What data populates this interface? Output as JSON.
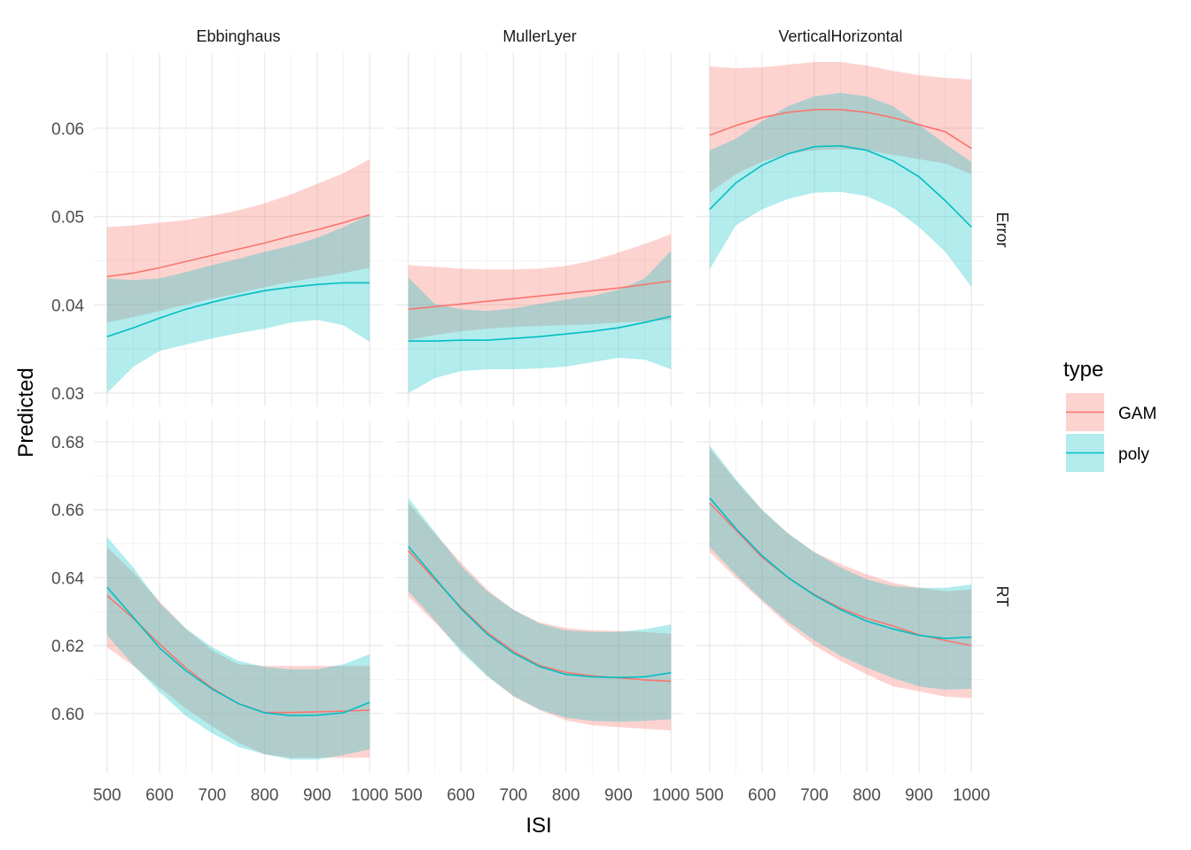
{
  "chart_data": {
    "type": "line",
    "xlabel": "ISI",
    "ylabel": "Predicted",
    "x": [
      500,
      550,
      600,
      650,
      700,
      750,
      800,
      850,
      900,
      950,
      1000
    ],
    "x_ticks": [
      500,
      600,
      700,
      800,
      900,
      1000
    ],
    "columns": [
      "Ebbinghaus",
      "MullerLyer",
      "VerticalHorizontal"
    ],
    "rows": [
      {
        "name": "Error",
        "ylim": [
          0.0285,
          0.0685
        ],
        "y_ticks": [
          0.03,
          0.04,
          0.05,
          0.06
        ],
        "tick_labels": [
          "0.03",
          "0.04",
          "0.05",
          "0.06"
        ]
      },
      {
        "name": "RT",
        "ylim": [
          0.5825,
          0.6865
        ],
        "y_ticks": [
          0.6,
          0.62,
          0.64,
          0.66,
          0.68
        ],
        "tick_labels": [
          "0.60",
          "0.62",
          "0.64",
          "0.66",
          "0.68"
        ]
      }
    ],
    "legend": {
      "title": "type",
      "position": "right",
      "entries": [
        "GAM",
        "poly"
      ]
    },
    "colors": {
      "GAM": "#f8766d",
      "poly": "#00bfc4",
      "GAM_band": "rgba(248,118,109,0.32)",
      "poly_band": "rgba(0,191,196,0.30)",
      "grid_major": "#ebebeb",
      "grid_minor": "#f3f3f3"
    },
    "panels": [
      {
        "row": "Error",
        "column": "Ebbinghaus",
        "series": [
          {
            "name": "GAM",
            "y": [
              0.0432,
              0.0436,
              0.0442,
              0.0449,
              0.0456,
              0.0463,
              0.047,
              0.0478,
              0.0485,
              0.0493,
              0.0502
            ],
            "lower": [
              0.038,
              0.0386,
              0.0393,
              0.04,
              0.0407,
              0.0413,
              0.042,
              0.0426,
              0.0431,
              0.0436,
              0.0442
            ],
            "upper": [
              0.0488,
              0.049,
              0.0493,
              0.0496,
              0.0501,
              0.0507,
              0.0515,
              0.0525,
              0.0537,
              0.0549,
              0.0565
            ]
          },
          {
            "name": "poly",
            "y": [
              0.0364,
              0.0374,
              0.0385,
              0.0395,
              0.0403,
              0.041,
              0.0416,
              0.042,
              0.0423,
              0.0425,
              0.0425
            ],
            "lower": [
              0.03,
              0.033,
              0.0348,
              0.0355,
              0.0362,
              0.0368,
              0.0373,
              0.038,
              0.0383,
              0.0377,
              0.0358
            ],
            "upper": [
              0.043,
              0.0428,
              0.043,
              0.0437,
              0.0445,
              0.0452,
              0.046,
              0.0467,
              0.0476,
              0.0488,
              0.0502
            ]
          }
        ]
      },
      {
        "row": "Error",
        "column": "MullerLyer",
        "series": [
          {
            "name": "GAM",
            "y": [
              0.0395,
              0.0398,
              0.0401,
              0.0404,
              0.0407,
              0.041,
              0.0413,
              0.0416,
              0.0419,
              0.0423,
              0.0427
            ],
            "lower": [
              0.036,
              0.0366,
              0.037,
              0.0373,
              0.0375,
              0.0376,
              0.0377,
              0.0378,
              0.038,
              0.0381,
              0.0383
            ],
            "upper": [
              0.0445,
              0.0443,
              0.0441,
              0.044,
              0.044,
              0.0441,
              0.0444,
              0.045,
              0.0459,
              0.0469,
              0.048
            ]
          },
          {
            "name": "poly",
            "y": [
              0.0359,
              0.0359,
              0.036,
              0.036,
              0.0362,
              0.0364,
              0.0367,
              0.037,
              0.0374,
              0.038,
              0.0387
            ],
            "lower": [
              0.03,
              0.0317,
              0.0325,
              0.0327,
              0.0327,
              0.0328,
              0.033,
              0.0335,
              0.034,
              0.0338,
              0.0327
            ],
            "upper": [
              0.0431,
              0.0401,
              0.0395,
              0.0393,
              0.0396,
              0.0401,
              0.0406,
              0.041,
              0.0417,
              0.043,
              0.0461
            ]
          }
        ]
      },
      {
        "row": "Error",
        "column": "VerticalHorizontal",
        "series": [
          {
            "name": "GAM",
            "y": [
              0.0592,
              0.0603,
              0.0612,
              0.0618,
              0.0621,
              0.0621,
              0.0618,
              0.0612,
              0.0604,
              0.0596,
              0.0577
            ],
            "lower": [
              0.0527,
              0.0548,
              0.0562,
              0.0571,
              0.0575,
              0.0576,
              0.0575,
              0.057,
              0.0565,
              0.056,
              0.0548
            ],
            "upper": [
              0.067,
              0.0668,
              0.0669,
              0.0672,
              0.0675,
              0.0675,
              0.0671,
              0.0665,
              0.066,
              0.0657,
              0.0655
            ]
          },
          {
            "name": "poly",
            "y": [
              0.0508,
              0.0538,
              0.0558,
              0.0571,
              0.0579,
              0.058,
              0.0575,
              0.0563,
              0.0545,
              0.0518,
              0.0488
            ],
            "lower": [
              0.044,
              0.049,
              0.0508,
              0.052,
              0.0527,
              0.0528,
              0.0523,
              0.051,
              0.0488,
              0.046,
              0.042
            ],
            "upper": [
              0.0575,
              0.0588,
              0.0608,
              0.0625,
              0.0636,
              0.064,
              0.0636,
              0.0625,
              0.0604,
              0.0582,
              0.0562
            ]
          }
        ]
      },
      {
        "row": "RT",
        "column": "Ebbinghaus",
        "series": [
          {
            "name": "GAM",
            "y": [
              0.6347,
              0.628,
              0.6204,
              0.6134,
              0.6075,
              0.6029,
              0.6003,
              0.6003,
              0.6005,
              0.6007,
              0.601
            ],
            "lower": [
              0.6195,
              0.614,
              0.6076,
              0.6015,
              0.5963,
              0.5914,
              0.588,
              0.587,
              0.587,
              0.587,
              0.587
            ],
            "upper": [
              0.649,
              0.6415,
              0.633,
              0.625,
              0.6185,
              0.6145,
              0.614,
              0.614,
              0.614,
              0.614,
              0.614
            ]
          },
          {
            "name": "poly",
            "y": [
              0.6372,
              0.6283,
              0.6193,
              0.6126,
              0.6072,
              0.6029,
              0.6002,
              0.5994,
              0.5995,
              0.6002,
              0.6033
            ],
            "lower": [
              0.623,
              0.6143,
              0.6063,
              0.5993,
              0.5942,
              0.5902,
              0.588,
              0.5865,
              0.5865,
              0.5878,
              0.5895
            ],
            "upper": [
              0.652,
              0.643,
              0.6325,
              0.625,
              0.6195,
              0.6155,
              0.6137,
              0.613,
              0.613,
              0.6145,
              0.6175
            ]
          }
        ]
      },
      {
        "row": "RT",
        "column": "MullerLyer",
        "series": [
          {
            "name": "GAM",
            "y": [
              0.648,
              0.6395,
              0.6313,
              0.6239,
              0.6183,
              0.6141,
              0.6121,
              0.6111,
              0.6105,
              0.6099,
              0.6095
            ],
            "lower": [
              0.6345,
              0.6268,
              0.619,
              0.6112,
              0.605,
              0.601,
              0.598,
              0.5965,
              0.596,
              0.5955,
              0.595
            ],
            "upper": [
              0.662,
              0.653,
              0.6445,
              0.6365,
              0.6305,
              0.6268,
              0.6252,
              0.6245,
              0.6243,
              0.624,
              0.6235
            ]
          },
          {
            "name": "poly",
            "y": [
              0.6492,
              0.64,
              0.6309,
              0.6234,
              0.6178,
              0.6138,
              0.6115,
              0.6108,
              0.6106,
              0.6108,
              0.612
            ],
            "lower": [
              0.636,
              0.6275,
              0.6182,
              0.611,
              0.6052,
              0.6012,
              0.5988,
              0.5978,
              0.5976,
              0.5978,
              0.5983
            ],
            "upper": [
              0.6635,
              0.6535,
              0.6435,
              0.636,
              0.6305,
              0.6265,
              0.6245,
              0.624,
              0.624,
              0.6248,
              0.6262
            ]
          }
        ]
      },
      {
        "row": "RT",
        "column": "VerticalHorizontal",
        "series": [
          {
            "name": "GAM",
            "y": [
              0.662,
              0.654,
              0.646,
              0.64,
              0.635,
              0.631,
              0.628,
              0.6258,
              0.6232,
              0.6215,
              0.62
            ],
            "lower": [
              0.6475,
              0.64,
              0.633,
              0.626,
              0.62,
              0.6155,
              0.6115,
              0.608,
              0.6065,
              0.605,
              0.6045
            ],
            "upper": [
              0.678,
              0.6685,
              0.66,
              0.653,
              0.6475,
              0.644,
              0.641,
              0.6385,
              0.637,
              0.636,
              0.6365
            ]
          },
          {
            "name": "poly",
            "y": [
              0.6635,
              0.6545,
              0.6465,
              0.64,
              0.6348,
              0.6306,
              0.6272,
              0.6249,
              0.623,
              0.6221,
              0.6225
            ],
            "lower": [
              0.649,
              0.641,
              0.6335,
              0.627,
              0.6215,
              0.617,
              0.6135,
              0.6105,
              0.608,
              0.607,
              0.6073
            ],
            "upper": [
              0.679,
              0.669,
              0.66,
              0.653,
              0.6475,
              0.643,
              0.6395,
              0.6375,
              0.637,
              0.637,
              0.638
            ]
          }
        ]
      }
    ]
  }
}
